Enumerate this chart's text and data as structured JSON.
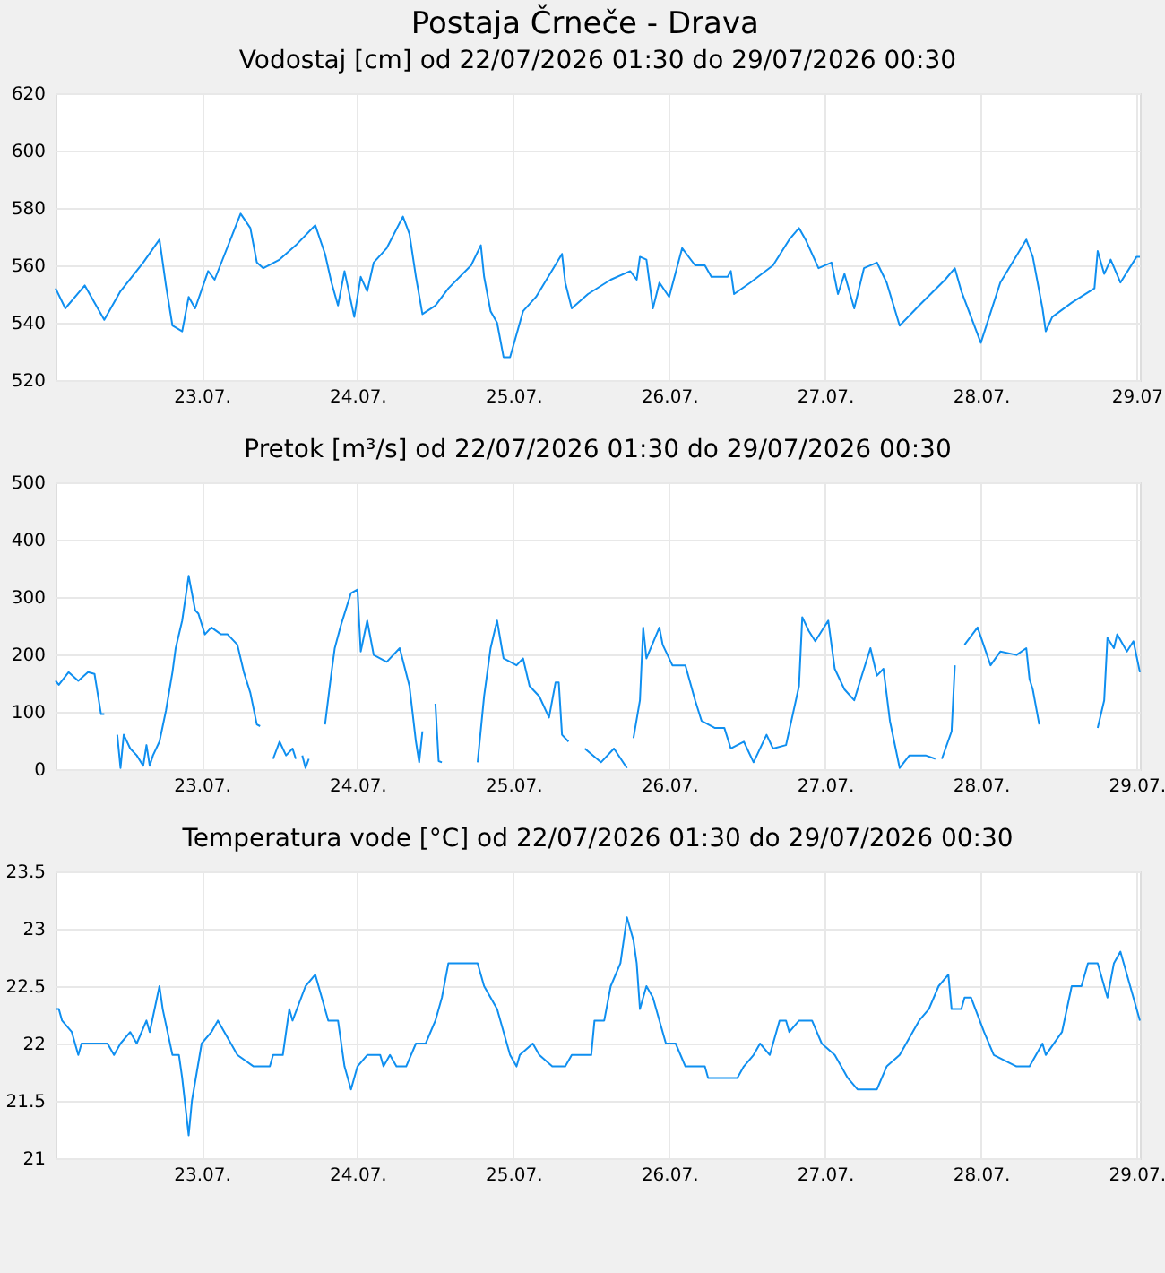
{
  "chart_data": [
    {
      "type": "line",
      "title": "Postaja Črneče - Drava",
      "subtitle": "Vodostaj [cm] od 22/07/2026 01:30 do 29/07/2026 00:30",
      "x": [
        "2026-07-22T01:30",
        "2026-07-22T03:00",
        "2026-07-22T06:00",
        "2026-07-22T09:00",
        "2026-07-22T11:30",
        "2026-07-22T15:00",
        "2026-07-22T17:30",
        "2026-07-22T18:30",
        "2026-07-22T19:30",
        "2026-07-22T21:00",
        "2026-07-22T22:00",
        "2026-07-22T23:00",
        "2026-07-23T01:00",
        "2026-07-23T02:00",
        "2026-07-23T06:00",
        "2026-07-23T07:30",
        "2026-07-23T08:30",
        "2026-07-23T09:30",
        "2026-07-23T12:00",
        "2026-07-23T14:30",
        "2026-07-23T17:30",
        "2026-07-23T19:00",
        "2026-07-23T20:00",
        "2026-07-23T21:00",
        "2026-07-23T22:00",
        "2026-07-23T23:30",
        "2026-07-24T00:30",
        "2026-07-24T01:30",
        "2026-07-24T02:30",
        "2026-07-24T04:30",
        "2026-07-24T07:00",
        "2026-07-24T08:00",
        "2026-07-24T09:00",
        "2026-07-24T10:00",
        "2026-07-24T12:00",
        "2026-07-24T14:00",
        "2026-07-24T17:30",
        "2026-07-24T19:00",
        "2026-07-24T19:30",
        "2026-07-24T20:30",
        "2026-07-24T21:30",
        "2026-07-24T22:30",
        "2026-07-24T23:30",
        "2026-07-25T01:30",
        "2026-07-25T03:30",
        "2026-07-25T07:30",
        "2026-07-25T08:00",
        "2026-07-25T09:00",
        "2026-07-25T11:30",
        "2026-07-25T15:00",
        "2026-07-25T18:00",
        "2026-07-25T19:00",
        "2026-07-25T19:30",
        "2026-07-25T20:30",
        "2026-07-25T21:30",
        "2026-07-25T22:30",
        "2026-07-26T00:00",
        "2026-07-26T02:00",
        "2026-07-26T04:00",
        "2026-07-26T05:30",
        "2026-07-26T06:30",
        "2026-07-26T09:00",
        "2026-07-26T09:30",
        "2026-07-26T10:00",
        "2026-07-26T12:30",
        "2026-07-26T16:00",
        "2026-07-26T18:30",
        "2026-07-26T20:00",
        "2026-07-26T21:00",
        "2026-07-26T23:00",
        "2026-07-27T01:00",
        "2026-07-27T02:00",
        "2026-07-27T03:00",
        "2026-07-27T04:30",
        "2026-07-27T06:00",
        "2026-07-27T08:00",
        "2026-07-27T09:30",
        "2026-07-27T11:30",
        "2026-07-27T14:30",
        "2026-07-27T18:30",
        "2026-07-27T20:00",
        "2026-07-27T21:00",
        "2026-07-28T00:00",
        "2026-07-28T03:00",
        "2026-07-28T07:00",
        "2026-07-28T08:00",
        "2026-07-28T09:30",
        "2026-07-28T10:00",
        "2026-07-28T11:00",
        "2026-07-28T14:00",
        "2026-07-28T17:30",
        "2026-07-28T18:00",
        "2026-07-28T19:00",
        "2026-07-28T20:00",
        "2026-07-28T21:30",
        "2026-07-29T00:00",
        "2026-07-29T00:30"
      ],
      "series": [
        {
          "color": "#0f8ff0",
          "values": [
            552,
            545,
            553,
            541,
            551,
            561,
            569,
            553,
            539,
            537,
            549,
            545,
            558,
            555,
            578,
            573,
            561,
            559,
            562,
            567,
            574,
            564,
            554,
            546,
            558,
            542,
            556,
            551,
            561,
            566,
            577,
            571,
            556,
            543,
            546,
            552,
            560,
            567,
            556,
            544,
            540,
            528,
            528,
            544,
            549,
            564,
            554,
            545,
            550,
            555,
            558,
            555,
            563,
            562,
            545,
            554,
            549,
            566,
            560,
            560,
            556,
            556,
            558,
            550,
            554,
            560,
            569,
            573,
            569,
            559,
            561,
            550,
            557,
            545,
            559,
            561,
            554,
            539,
            546,
            555,
            559,
            551,
            533,
            554,
            569,
            563,
            545,
            537,
            542,
            547,
            552,
            565,
            557,
            562,
            554,
            563,
            563
          ]
        }
      ],
      "xlim": [
        "2026-07-22T01:30",
        "2026-07-29T00:30"
      ],
      "xticks": [
        {
          "value": "2026-07-23",
          "label": "23.07."
        },
        {
          "value": "2026-07-24",
          "label": "24.07."
        },
        {
          "value": "2026-07-25",
          "label": "25.07."
        },
        {
          "value": "2026-07-26",
          "label": "26.07."
        },
        {
          "value": "2026-07-27",
          "label": "27.07."
        },
        {
          "value": "2026-07-28",
          "label": "28.07."
        },
        {
          "value": "2026-07-29",
          "label": "29.07"
        }
      ],
      "ylim": [
        520,
        620
      ],
      "yticks": [
        520,
        540,
        560,
        580,
        600,
        620
      ],
      "grid": true
    },
    {
      "type": "line",
      "title": "Pretok [m³/s] od 22/07/2026 01:30 do 29/07/2026 00:30",
      "x": [
        "2026-07-22T01:30",
        "2026-07-22T02:00",
        "2026-07-22T03:30",
        "2026-07-22T05:00",
        "2026-07-22T06:30",
        "2026-07-22T07:30",
        "2026-07-22T08:30",
        "2026-07-22T09:00",
        "2026-07-22T10:00",
        "2026-07-22T11:00",
        "2026-07-22T11:30",
        "2026-07-22T12:00",
        "2026-07-22T13:00",
        "2026-07-22T14:00",
        "2026-07-22T15:00",
        "2026-07-22T15:30",
        "2026-07-22T16:00",
        "2026-07-22T16:30",
        "2026-07-22T17:30",
        "2026-07-22T18:30",
        "2026-07-22T19:30",
        "2026-07-22T20:00",
        "2026-07-22T21:00",
        "2026-07-22T22:00",
        "2026-07-22T22:30",
        "2026-07-22T23:00",
        "2026-07-22T23:30",
        "2026-07-23T00:30",
        "2026-07-23T01:30",
        "2026-07-23T03:00",
        "2026-07-23T04:00",
        "2026-07-23T05:30",
        "2026-07-23T06:30",
        "2026-07-23T07:30",
        "2026-07-23T08:30",
        "2026-07-23T09:00",
        "2026-07-23T10:00",
        "2026-07-23T11:00",
        "2026-07-23T12:00",
        "2026-07-23T13:00",
        "2026-07-23T14:00",
        "2026-07-23T14:30",
        "2026-07-23T15:00",
        "2026-07-23T15:30",
        "2026-07-23T16:00",
        "2026-07-23T16:30",
        "2026-07-23T17:30",
        "2026-07-23T19:00",
        "2026-07-23T20:00",
        "2026-07-23T20:30",
        "2026-07-23T21:30",
        "2026-07-23T23:00",
        "2026-07-24T00:00",
        "2026-07-24T00:30",
        "2026-07-24T01:30",
        "2026-07-24T02:30",
        "2026-07-24T04:30",
        "2026-07-24T06:30",
        "2026-07-24T08:00",
        "2026-07-24T09:00",
        "2026-07-24T09:30",
        "2026-07-24T10:00",
        "2026-07-24T11:00",
        "2026-07-24T12:00",
        "2026-07-24T12:30",
        "2026-07-24T13:00",
        "2026-07-24T14:00",
        "2026-07-24T18:30",
        "2026-07-24T19:30",
        "2026-07-24T20:30",
        "2026-07-24T21:00",
        "2026-07-24T21:30",
        "2026-07-24T22:30",
        "2026-07-25T00:30",
        "2026-07-25T01:30",
        "2026-07-25T02:30",
        "2026-07-25T04:00",
        "2026-07-25T05:30",
        "2026-07-25T06:30",
        "2026-07-25T07:00",
        "2026-07-25T07:30",
        "2026-07-25T08:30",
        "2026-07-25T10:00",
        "2026-07-25T11:00",
        "2026-07-25T13:30",
        "2026-07-25T15:30",
        "2026-07-25T17:30",
        "2026-07-25T18:00",
        "2026-07-25T18:30",
        "2026-07-25T19:30",
        "2026-07-25T20:00",
        "2026-07-25T20:30",
        "2026-07-25T22:30",
        "2026-07-25T23:00",
        "2026-07-26T00:30",
        "2026-07-26T02:30",
        "2026-07-26T04:00",
        "2026-07-26T05:00",
        "2026-07-26T07:00",
        "2026-07-26T08:30",
        "2026-07-26T09:30",
        "2026-07-26T11:30",
        "2026-07-26T13:00",
        "2026-07-26T15:00",
        "2026-07-26T16:00",
        "2026-07-26T18:00",
        "2026-07-26T20:00",
        "2026-07-26T20:30",
        "2026-07-26T21:30",
        "2026-07-26T22:30",
        "2026-07-27T00:30",
        "2026-07-27T01:30",
        "2026-07-27T03:00",
        "2026-07-27T04:30",
        "2026-07-27T05:30",
        "2026-07-27T07:00",
        "2026-07-27T08:00",
        "2026-07-27T09:00",
        "2026-07-27T10:00",
        "2026-07-27T11:30",
        "2026-07-27T13:00",
        "2026-07-27T15:30",
        "2026-07-27T17:00",
        "2026-07-27T17:30",
        "2026-07-27T18:00",
        "2026-07-27T19:30",
        "2026-07-27T20:00",
        "2026-07-27T20:30",
        "2026-07-27T21:30",
        "2026-07-27T23:30",
        "2026-07-28T01:30",
        "2026-07-28T03:00",
        "2026-07-28T05:30",
        "2026-07-28T07:00",
        "2026-07-28T07:30",
        "2026-07-28T08:00",
        "2026-07-28T09:00",
        "2026-07-28T10:00",
        "2026-07-28T18:00",
        "2026-07-28T19:00",
        "2026-07-28T19:30",
        "2026-07-28T20:30",
        "2026-07-28T21:00",
        "2026-07-28T22:30",
        "2026-07-28T23:30",
        "2026-07-29T00:30"
      ],
      "series": [
        {
          "color": "#0f8ff0",
          "values": [
            154,
            147,
            169,
            154,
            169,
            166,
            96,
            96,
            null,
            60,
            2,
            60,
            36,
            24,
            6,
            42,
            6,
            24,
            48,
            102,
            169,
            211,
            259,
            337,
            307,
            277,
            271,
            235,
            247,
            235,
            235,
            217,
            169,
            133,
            78,
            75,
            null,
            18,
            48,
            24,
            36,
            18,
            null,
            24,
            2,
            18,
            null,
            78,
            169,
            211,
            253,
            307,
            313,
            205,
            259,
            199,
            187,
            211,
            145,
            48,
            12,
            66,
            null,
            114,
            14,
            12,
            null,
            12,
            127,
            211,
            235,
            259,
            193,
            181,
            193,
            145,
            127,
            90,
            151,
            151,
            60,
            48,
            null,
            36,
            12,
            36,
            2,
            null,
            54,
            120,
            247,
            193,
            247,
            217,
            181,
            181,
            120,
            84,
            72,
            72,
            36,
            48,
            12,
            60,
            36,
            42,
            145,
            265,
            241,
            223,
            259,
            175,
            139,
            120,
            157,
            211,
            163,
            175,
            84,
            2,
            24,
            24,
            18,
            null,
            18,
            66,
            181,
            null,
            217,
            247,
            181,
            205,
            199,
            211,
            157,
            139,
            78,
            null,
            72,
            120,
            229,
            211,
            235,
            205,
            223,
            169
          ]
        }
      ],
      "xlim": [
        "2026-07-22T01:30",
        "2026-07-29T00:30"
      ],
      "xticks": [
        {
          "value": "2026-07-23",
          "label": "23.07."
        },
        {
          "value": "2026-07-24",
          "label": "24.07."
        },
        {
          "value": "2026-07-25",
          "label": "25.07."
        },
        {
          "value": "2026-07-26",
          "label": "26.07."
        },
        {
          "value": "2026-07-27",
          "label": "27.07."
        },
        {
          "value": "2026-07-28",
          "label": "28.07."
        },
        {
          "value": "2026-07-29",
          "label": "29.07."
        }
      ],
      "ylim": [
        0,
        500
      ],
      "yticks": [
        0,
        100,
        200,
        300,
        400,
        500
      ],
      "grid": true
    },
    {
      "type": "line",
      "title": "Temperatura vode [°C] od 22/07/2026 01:30 do 29/07/2026 00:30",
      "x": [
        "2026-07-22T01:30",
        "2026-07-22T02:00",
        "2026-07-22T02:30",
        "2026-07-22T04:00",
        "2026-07-22T05:00",
        "2026-07-22T05:30",
        "2026-07-22T09:30",
        "2026-07-22T10:30",
        "2026-07-22T11:30",
        "2026-07-22T13:00",
        "2026-07-22T14:00",
        "2026-07-22T15:30",
        "2026-07-22T16:00",
        "2026-07-22T17:30",
        "2026-07-22T18:00",
        "2026-07-22T19:30",
        "2026-07-22T20:30",
        "2026-07-22T21:00",
        "2026-07-22T22:00",
        "2026-07-22T22:30",
        "2026-07-23T00:00",
        "2026-07-23T01:30",
        "2026-07-23T02:30",
        "2026-07-23T03:30",
        "2026-07-23T05:30",
        "2026-07-23T08:00",
        "2026-07-23T10:30",
        "2026-07-23T11:00",
        "2026-07-23T12:30",
        "2026-07-23T13:30",
        "2026-07-23T14:00",
        "2026-07-23T16:00",
        "2026-07-23T17:30",
        "2026-07-23T18:30",
        "2026-07-23T19:30",
        "2026-07-23T21:00",
        "2026-07-23T22:00",
        "2026-07-23T23:00",
        "2026-07-24T00:00",
        "2026-07-24T01:30",
        "2026-07-24T03:30",
        "2026-07-24T04:00",
        "2026-07-24T05:00",
        "2026-07-24T06:00",
        "2026-07-24T07:30",
        "2026-07-24T09:00",
        "2026-07-24T10:30",
        "2026-07-24T12:00",
        "2026-07-24T13:00",
        "2026-07-24T14:00",
        "2026-07-24T15:30",
        "2026-07-24T18:30",
        "2026-07-24T19:30",
        "2026-07-24T20:30",
        "2026-07-24T21:30",
        "2026-07-24T23:30",
        "2026-07-25T00:30",
        "2026-07-25T01:00",
        "2026-07-25T03:00",
        "2026-07-25T04:00",
        "2026-07-25T06:00",
        "2026-07-25T08:00",
        "2026-07-25T09:00",
        "2026-07-25T12:00",
        "2026-07-25T12:30",
        "2026-07-25T14:00",
        "2026-07-25T15:00",
        "2026-07-25T16:30",
        "2026-07-25T17:30",
        "2026-07-25T18:30",
        "2026-07-25T19:00",
        "2026-07-25T19:30",
        "2026-07-25T20:30",
        "2026-07-25T21:30",
        "2026-07-25T23:30",
        "2026-07-26T01:00",
        "2026-07-26T02:30",
        "2026-07-26T05:30",
        "2026-07-26T06:00",
        "2026-07-26T10:30",
        "2026-07-26T11:30",
        "2026-07-26T13:00",
        "2026-07-26T14:00",
        "2026-07-26T15:30",
        "2026-07-26T17:00",
        "2026-07-26T18:00",
        "2026-07-26T18:30",
        "2026-07-26T20:00",
        "2026-07-26T22:00",
        "2026-07-26T23:30",
        "2026-07-27T01:30",
        "2026-07-27T02:30",
        "2026-07-27T03:30",
        "2026-07-27T05:00",
        "2026-07-27T08:00",
        "2026-07-27T09:30",
        "2026-07-27T11:30",
        "2026-07-27T13:30",
        "2026-07-27T14:30",
        "2026-07-27T16:00",
        "2026-07-27T17:30",
        "2026-07-27T19:00",
        "2026-07-27T19:30",
        "2026-07-27T21:00",
        "2026-07-27T21:30",
        "2026-07-27T22:30",
        "2026-07-28T00:30",
        "2026-07-28T02:00",
        "2026-07-28T05:30",
        "2026-07-28T07:30",
        "2026-07-28T09:30",
        "2026-07-28T10:00",
        "2026-07-28T12:30",
        "2026-07-28T14:00",
        "2026-07-28T15:30",
        "2026-07-28T16:30",
        "2026-07-28T18:00",
        "2026-07-28T19:30",
        "2026-07-28T20:30",
        "2026-07-28T21:30",
        "2026-07-28T23:30",
        "2026-07-29T00:30"
      ],
      "series": [
        {
          "color": "#0f8ff0",
          "values": [
            22.3,
            22.3,
            22.2,
            22.1,
            21.9,
            22.0,
            22.0,
            21.9,
            22.0,
            22.1,
            22.0,
            22.2,
            22.1,
            22.5,
            22.3,
            21.9,
            21.9,
            21.7,
            21.2,
            21.5,
            22.0,
            22.1,
            22.2,
            22.1,
            21.9,
            21.8,
            21.8,
            21.9,
            21.9,
            22.3,
            22.2,
            22.5,
            22.6,
            22.4,
            22.2,
            22.2,
            21.8,
            21.6,
            21.8,
            21.9,
            21.9,
            21.8,
            21.9,
            21.8,
            21.8,
            22.0,
            22.0,
            22.2,
            22.4,
            22.7,
            22.7,
            22.7,
            22.5,
            22.4,
            22.3,
            21.9,
            21.8,
            21.9,
            22.0,
            21.9,
            21.8,
            21.8,
            21.9,
            21.9,
            22.2,
            22.2,
            22.5,
            22.7,
            23.1,
            22.9,
            22.7,
            22.3,
            22.5,
            22.4,
            22.0,
            22.0,
            21.8,
            21.8,
            21.7,
            21.7,
            21.8,
            21.9,
            22.0,
            21.9,
            22.2,
            22.2,
            22.1,
            22.2,
            22.2,
            22.0,
            21.9,
            21.8,
            21.7,
            21.6,
            21.6,
            21.8,
            21.9,
            22.1,
            22.2,
            22.3,
            22.5,
            22.6,
            22.3,
            22.3,
            22.4,
            22.4,
            22.1,
            21.9,
            21.8,
            21.8,
            22.0,
            21.9,
            22.1,
            22.5,
            22.5,
            22.7,
            22.7,
            22.4,
            22.7,
            22.8,
            22.4,
            22.2
          ]
        }
      ],
      "xlim": [
        "2026-07-22T01:30",
        "2026-07-29T00:30"
      ],
      "xticks": [
        {
          "value": "2026-07-23",
          "label": "23.07."
        },
        {
          "value": "2026-07-24",
          "label": "24.07."
        },
        {
          "value": "2026-07-25",
          "label": "25.07."
        },
        {
          "value": "2026-07-26",
          "label": "26.07."
        },
        {
          "value": "2026-07-27",
          "label": "27.07."
        },
        {
          "value": "2026-07-28",
          "label": "28.07."
        },
        {
          "value": "2026-07-29",
          "label": "29.07."
        }
      ],
      "ylim": [
        21,
        23.5
      ],
      "yticks": [
        21,
        21.5,
        22,
        22.5,
        23,
        23.5
      ],
      "grid": true
    }
  ]
}
